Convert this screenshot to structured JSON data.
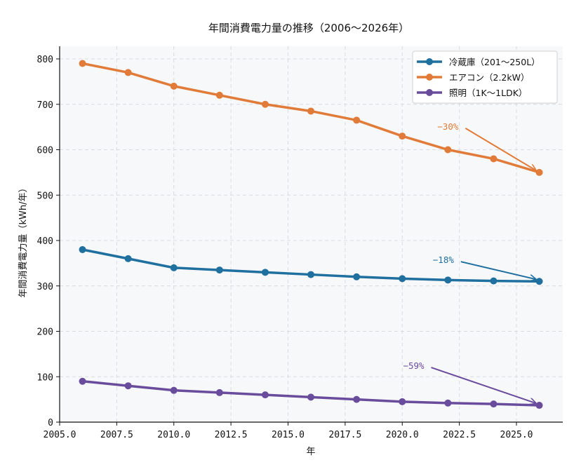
{
  "chart_data": {
    "type": "line",
    "title": "年間消費電力量の推移（2006〜2026年）",
    "xlabel": "年",
    "ylabel": "年間消費電力量（kWh/年）",
    "xlim": [
      2005.0,
      2027.2
    ],
    "ylim": [
      0,
      830
    ],
    "xticks": [
      2005.0,
      2007.5,
      2010.0,
      2012.5,
      2015.0,
      2017.5,
      2020.0,
      2022.5,
      2025.0
    ],
    "xtick_labels": [
      "2005.0",
      "2007.5",
      "2010.0",
      "2012.5",
      "2015.0",
      "2017.5",
      "2020.0",
      "2022.5",
      "2025.0"
    ],
    "yticks": [
      0,
      100,
      200,
      300,
      400,
      500,
      600,
      700,
      800
    ],
    "ytick_labels": [
      "0",
      "100",
      "200",
      "300",
      "400",
      "500",
      "600",
      "700",
      "800"
    ],
    "grid": true,
    "legend_position": "top-right",
    "x": [
      2006,
      2008,
      2010,
      2012,
      2014,
      2016,
      2018,
      2020,
      2022,
      2024,
      2026
    ],
    "series": [
      {
        "name": "冷蔵庫（201〜250L）",
        "color": "#1f6f9f",
        "values": [
          380,
          360,
          340,
          335,
          330,
          325,
          320,
          316,
          313,
          311,
          310
        ]
      },
      {
        "name": "エアコン（2.2kW）",
        "color": "#e07b39",
        "values": [
          790,
          770,
          740,
          720,
          700,
          685,
          665,
          630,
          600,
          580,
          550
        ]
      },
      {
        "name": "照明（1K〜1LDK）",
        "color": "#6a4c9c",
        "values": [
          90,
          80,
          70,
          65,
          60,
          55,
          50,
          45,
          42,
          40,
          37
        ]
      }
    ],
    "annotations": [
      {
        "text": "−30%",
        "series": 1,
        "text_x": 2022.0,
        "text_y": 652,
        "target_x": 2026,
        "target_y": 550
      },
      {
        "text": "−18%",
        "series": 0,
        "text_x": 2021.8,
        "text_y": 358,
        "target_x": 2026,
        "target_y": 310
      },
      {
        "text": "−59%",
        "series": 2,
        "text_x": 2020.5,
        "text_y": 125,
        "target_x": 2026,
        "target_y": 37
      }
    ]
  },
  "colors": {
    "plot_background": "#f7f8fa",
    "grid": "#d9dbe0"
  }
}
